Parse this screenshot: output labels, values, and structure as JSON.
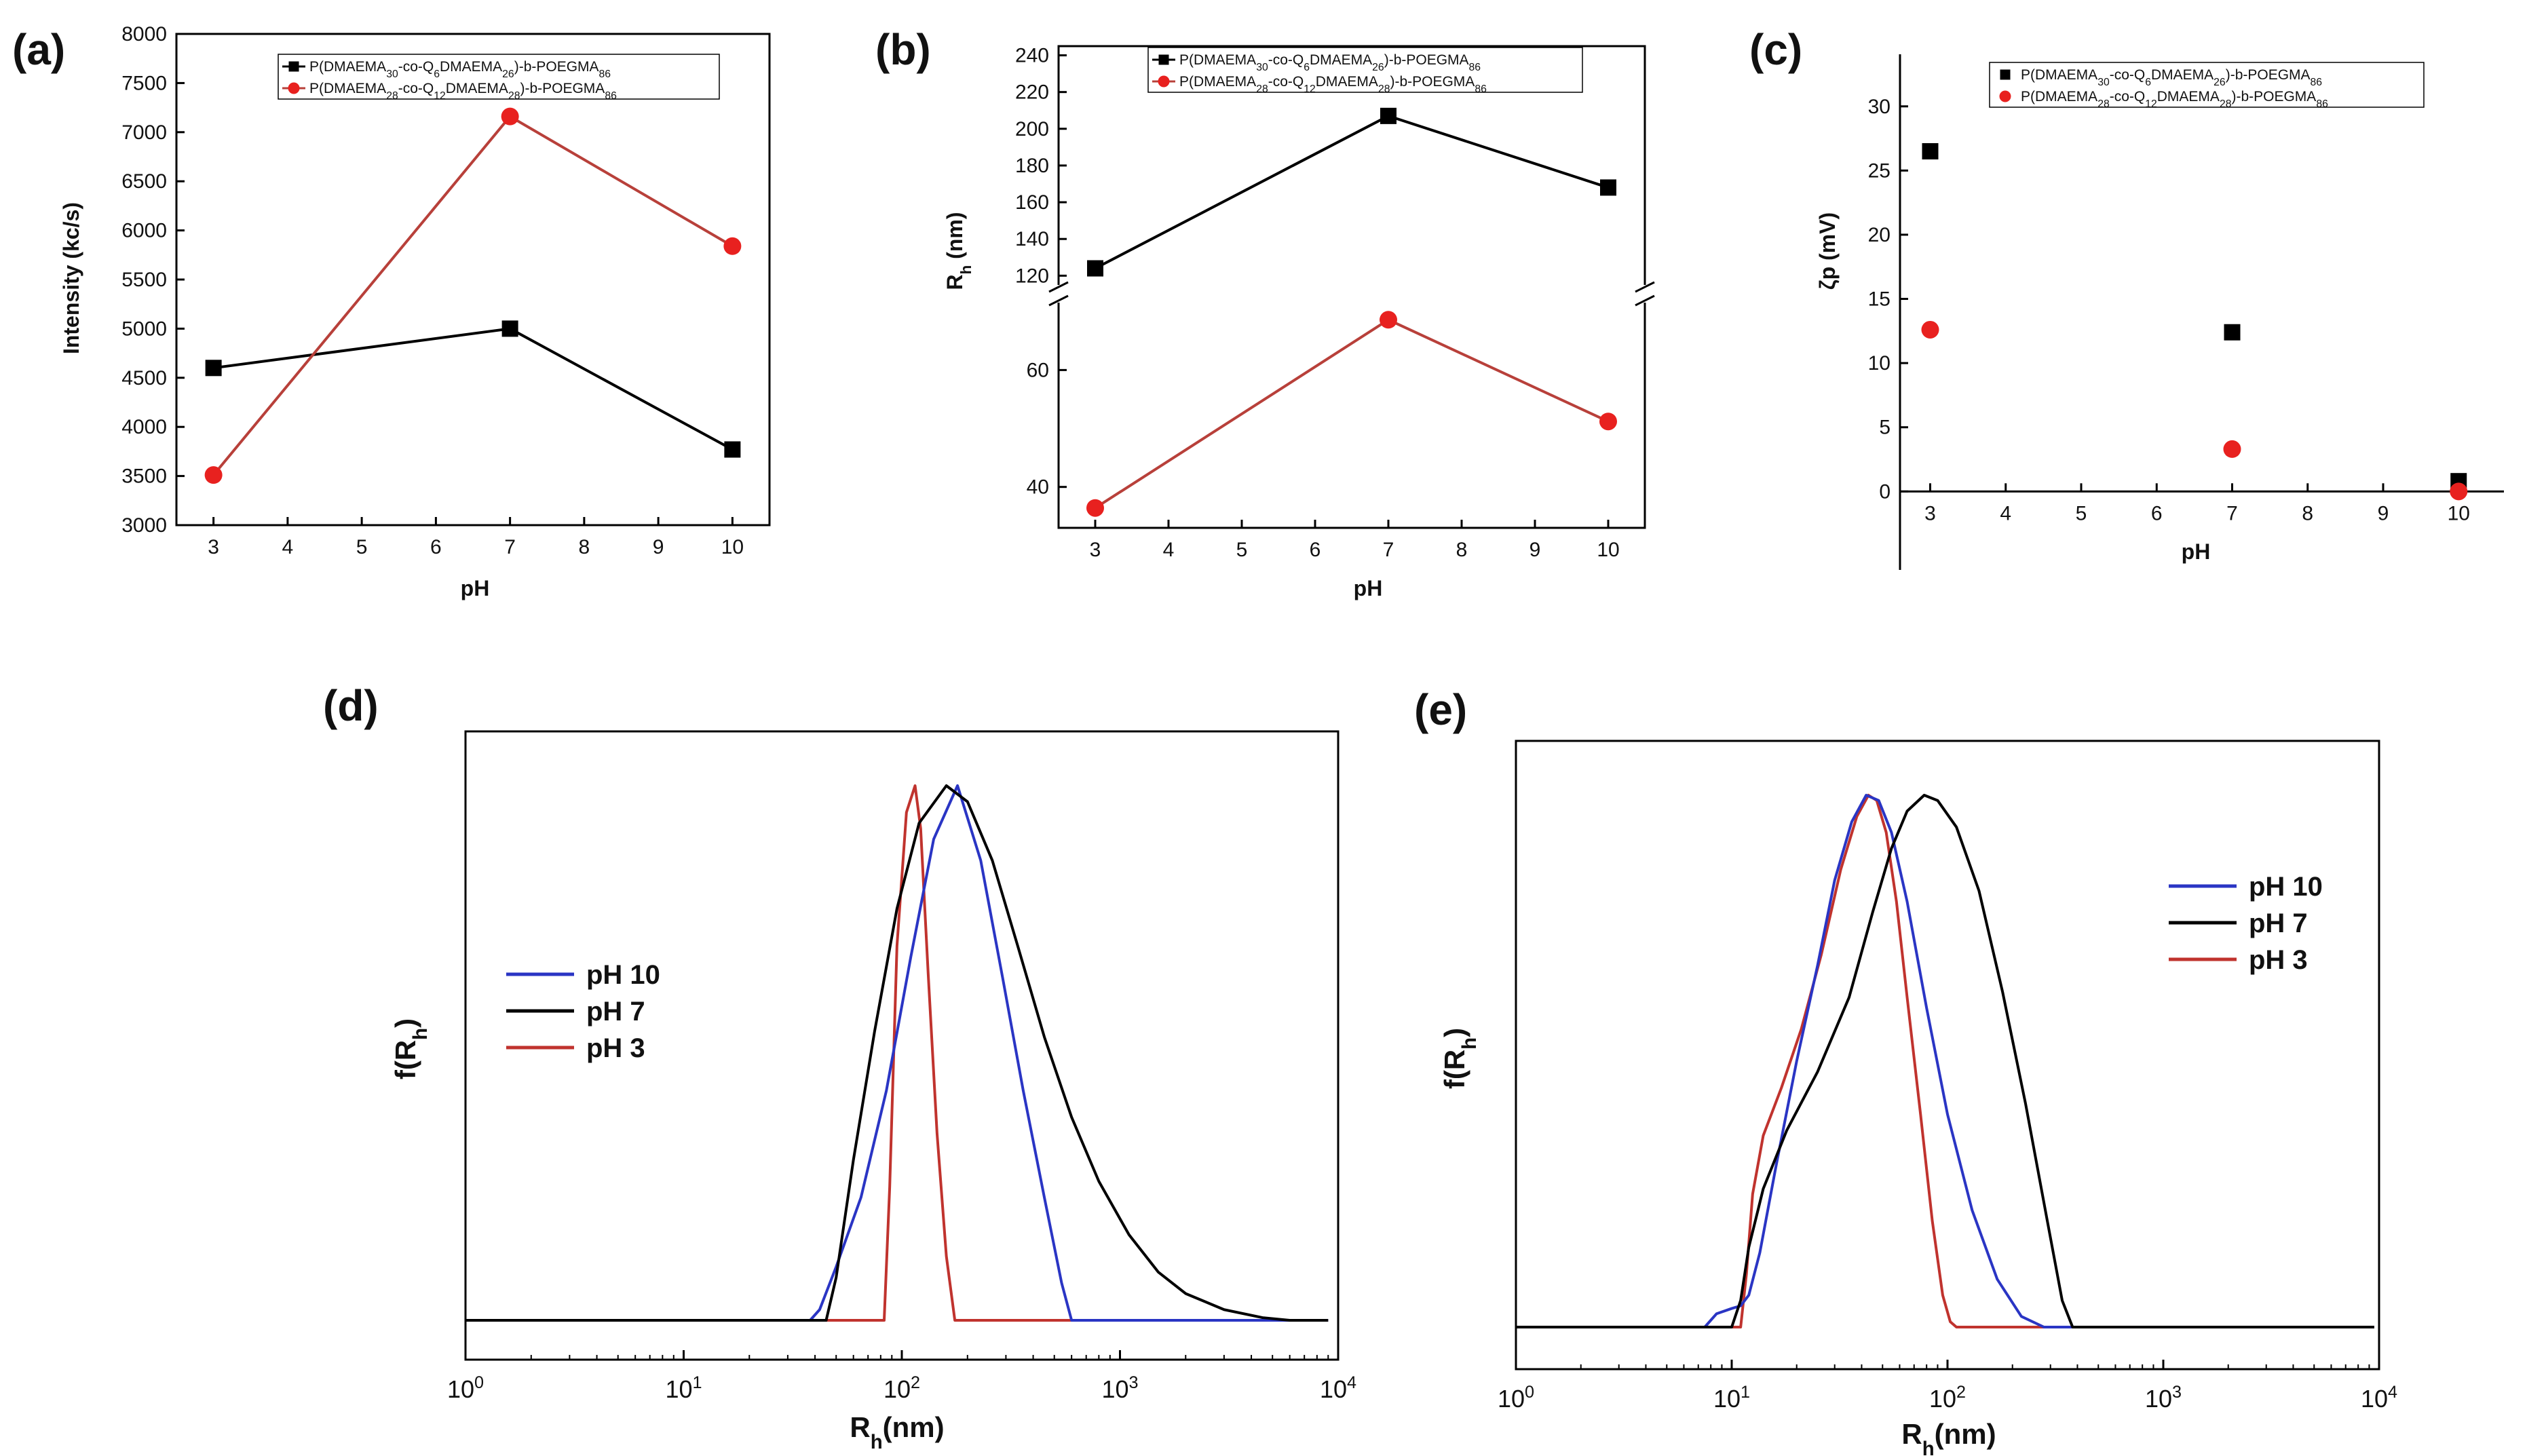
{
  "colors": {
    "black_series": "#000000",
    "red_series": "#e8211f",
    "red_line": "#b8403a",
    "blue_line": "#2a35c4",
    "dist_black": "#000000",
    "dist_red": "#c0332e"
  },
  "chart_data": [
    {
      "panel": "(a)",
      "type": "line",
      "xlabel": "pH",
      "ylabel": "Intensity (kc/s)",
      "xlim": [
        2.5,
        10.5
      ],
      "ylim": [
        3000,
        8000
      ],
      "xticks": [
        "3",
        "4",
        "5",
        "6",
        "7",
        "8",
        "9",
        "10"
      ],
      "yticks": [
        "3000",
        "3500",
        "4000",
        "4500",
        "5000",
        "5500",
        "6000",
        "6500",
        "7000",
        "7500",
        "8000"
      ],
      "legend_position": "top-center",
      "series": [
        {
          "legend": [
            "P(DMAEMA",
            "30",
            "-co-Q",
            "6",
            "DMAEMA",
            "26",
            ")-b-POEGMA",
            "86"
          ],
          "marker": "square",
          "color": "#000000",
          "x": [
            3,
            7,
            10
          ],
          "y": [
            4600,
            5000,
            3770
          ]
        },
        {
          "legend": [
            "P(DMAEMA",
            "28",
            "-co-Q",
            "12",
            "DMAEMA",
            "28",
            ")-b-POEGMA",
            "86"
          ],
          "marker": "circle",
          "color": "#e8211f",
          "x": [
            3,
            7,
            10
          ],
          "y": [
            3510,
            7160,
            5840
          ]
        }
      ]
    },
    {
      "panel": "(b)",
      "type": "line",
      "xlabel": "pH",
      "ylabel": "R_h (nm)",
      "ylabel_main": "R",
      "ylabel_sub": "h",
      "ylabel_tail": " (nm)",
      "xlim": [
        2.5,
        10.5
      ],
      "broken_axis": true,
      "ylim_lower": [
        33,
        72
      ],
      "ylim_upper": [
        112,
        245
      ],
      "xticks": [
        "3",
        "4",
        "5",
        "6",
        "7",
        "8",
        "9",
        "10"
      ],
      "yticks_upper": [
        "120",
        "140",
        "160",
        "180",
        "200",
        "220",
        "240"
      ],
      "yticks_lower": [
        "40",
        "60"
      ],
      "legend_position": "top-right",
      "series": [
        {
          "legend": [
            "P(DMAEMA",
            "30",
            "-co-Q",
            "6",
            "DMAEMA",
            "26",
            ")-b-POEGMA",
            "86"
          ],
          "marker": "square",
          "color": "#000000",
          "x": [
            3,
            7,
            10
          ],
          "y": [
            124,
            207,
            168
          ]
        },
        {
          "legend": [
            "P(DMAEMA",
            "28",
            "-co-Q",
            "12",
            "DMAEMA",
            "28",
            ")-b-POEGMA",
            "86"
          ],
          "marker": "circle",
          "color": "#e8211f",
          "x": [
            3,
            7,
            10
          ],
          "y": [
            36.4,
            68.6,
            51.2
          ]
        }
      ]
    },
    {
      "panel": "(c)",
      "type": "scatter",
      "xlabel": "pH",
      "ylabel": "ζp (mV)",
      "xlim": [
        2.6,
        10.6
      ],
      "ylim": [
        -4,
        33
      ],
      "xticks": [
        "3",
        "4",
        "5",
        "6",
        "7",
        "8",
        "9",
        "10"
      ],
      "yticks": [
        "0",
        "5",
        "10",
        "15",
        "20",
        "25",
        "30"
      ],
      "legend_position": "top-right",
      "series": [
        {
          "legend": [
            "P(DMAEMA",
            "30",
            "-co-Q",
            "6",
            "DMAEMA",
            "26",
            ")-b-POEGMA",
            "86"
          ],
          "marker": "square",
          "color": "#000000",
          "x": [
            3,
            7,
            10
          ],
          "y": [
            26.5,
            12.4,
            0.8
          ]
        },
        {
          "legend": [
            "P(DMAEMA",
            "28",
            "-co-Q",
            "12",
            "DMAEMA",
            "28",
            ")-b-POEGMA",
            "86"
          ],
          "marker": "circle",
          "color": "#e8211f",
          "x": [
            3,
            7,
            10
          ],
          "y": [
            12.6,
            3.3,
            0.0
          ]
        }
      ]
    },
    {
      "panel": "(d)",
      "type": "line",
      "x_scale": "log",
      "xlabel": "R_h(nm)",
      "xlabel_main": "R",
      "xlabel_sub": "h",
      "xlabel_tail": "(nm)",
      "ylabel": "f(R_h)",
      "ylabel_main": "f(R",
      "ylabel_sub": "h",
      "ylabel_tail": ")",
      "xlim": [
        1,
        10000
      ],
      "ylim": [
        0,
        1
      ],
      "xticks": [
        {
          "base": "10",
          "exp": "0"
        },
        {
          "base": "10",
          "exp": "1"
        },
        {
          "base": "10",
          "exp": "2"
        },
        {
          "base": "10",
          "exp": "3"
        },
        {
          "base": "10",
          "exp": "4"
        }
      ],
      "legend_position": "center-left",
      "series": [
        {
          "name": "pH 10",
          "color": "#2a35c4",
          "x": [
            1,
            38,
            42,
            50,
            65,
            85,
            110,
            140,
            180,
            230,
            290,
            360,
            450,
            540,
            600,
            9000
          ],
          "y": [
            0,
            0,
            0.02,
            0.1,
            0.23,
            0.43,
            0.68,
            0.9,
            1.0,
            0.86,
            0.64,
            0.43,
            0.23,
            0.07,
            0,
            0
          ]
        },
        {
          "name": "pH 7",
          "color": "#000000",
          "x": [
            1,
            45,
            50,
            60,
            75,
            95,
            120,
            160,
            200,
            260,
            340,
            450,
            600,
            800,
            1100,
            1500,
            2000,
            3000,
            4500,
            6000,
            9000
          ],
          "y": [
            0,
            0,
            0.08,
            0.3,
            0.54,
            0.77,
            0.93,
            1.0,
            0.97,
            0.86,
            0.7,
            0.53,
            0.38,
            0.26,
            0.16,
            0.09,
            0.05,
            0.02,
            0.005,
            0,
            0
          ]
        },
        {
          "name": "pH 3",
          "color": "#c0332e",
          "x": [
            1,
            83,
            88,
            95,
            105,
            115,
            122,
            132,
            145,
            160,
            175,
            9000
          ],
          "y": [
            0,
            0,
            0.25,
            0.7,
            0.95,
            1.0,
            0.92,
            0.65,
            0.35,
            0.12,
            0,
            0
          ]
        }
      ]
    },
    {
      "panel": "(e)",
      "type": "line",
      "x_scale": "log",
      "xlabel": "R_h(nm)",
      "xlabel_main": "R",
      "xlabel_sub": "h",
      "xlabel_tail": "(nm)",
      "ylabel": "f(R_h)",
      "ylabel_main": "f(R",
      "ylabel_sub": "h",
      "ylabel_tail": ")",
      "xlim": [
        1,
        10000
      ],
      "ylim": [
        0,
        1
      ],
      "xticks": [
        {
          "base": "10",
          "exp": "0"
        },
        {
          "base": "10",
          "exp": "1"
        },
        {
          "base": "10",
          "exp": "2"
        },
        {
          "base": "10",
          "exp": "3"
        },
        {
          "base": "10",
          "exp": "4"
        }
      ],
      "legend_position": "top-right",
      "series": [
        {
          "name": "pH 10",
          "color": "#2a35c4",
          "x": [
            1,
            7.5,
            8.5,
            10,
            11,
            12,
            13.5,
            16,
            20,
            25,
            30,
            36,
            42,
            48,
            55,
            65,
            80,
            100,
            130,
            170,
            220,
            280,
            9500
          ],
          "y": [
            0,
            0,
            0.025,
            0.035,
            0.04,
            0.06,
            0.14,
            0.3,
            0.5,
            0.68,
            0.84,
            0.95,
            1.0,
            0.99,
            0.93,
            0.8,
            0.6,
            0.4,
            0.22,
            0.09,
            0.02,
            0,
            0
          ]
        },
        {
          "name": "pH 7",
          "color": "#000000",
          "x": [
            1,
            10,
            11,
            12,
            14,
            18,
            25,
            35,
            45,
            55,
            65,
            78,
            90,
            110,
            140,
            180,
            230,
            290,
            340,
            380,
            9500
          ],
          "y": [
            0,
            0,
            0.05,
            0.15,
            0.26,
            0.37,
            0.48,
            0.62,
            0.78,
            0.9,
            0.97,
            1.0,
            0.99,
            0.94,
            0.82,
            0.63,
            0.42,
            0.2,
            0.05,
            0,
            0
          ]
        },
        {
          "name": "pH 3",
          "color": "#c0332e",
          "x": [
            1,
            11,
            11.7,
            12.5,
            14,
            17,
            21,
            26,
            32,
            38,
            43,
            47,
            52,
            58,
            65,
            75,
            85,
            95,
            103,
            110,
            9500
          ],
          "y": [
            0,
            0,
            0.1,
            0.25,
            0.36,
            0.45,
            0.56,
            0.7,
            0.86,
            0.96,
            1.0,
            0.99,
            0.93,
            0.8,
            0.62,
            0.4,
            0.2,
            0.06,
            0.01,
            0,
            0
          ]
        }
      ]
    }
  ]
}
